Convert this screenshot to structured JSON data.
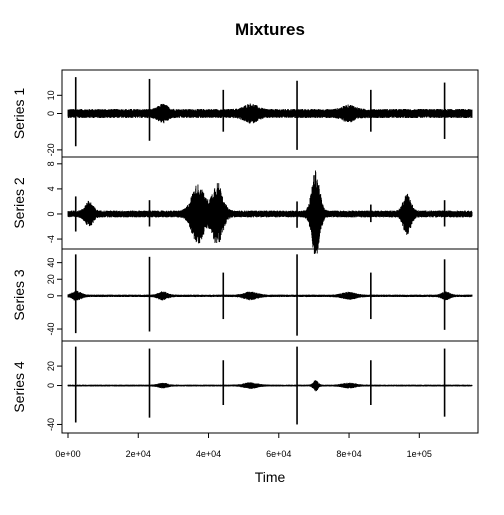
{
  "chart_data": {
    "type": "line",
    "title": "Mixtures",
    "xlabel": "Time",
    "xlim": [
      0,
      115000
    ],
    "x_ticks": [
      0,
      20000,
      40000,
      60000,
      80000,
      100000
    ],
    "x_tick_labels": [
      "0e+00",
      "2e+04",
      "4e+04",
      "6e+04",
      "8e+04",
      "1e+05"
    ],
    "grid": false,
    "spike_times": [
      2200,
      23200,
      44200,
      65200,
      86200,
      107200
    ],
    "series": [
      {
        "name": "Series 1",
        "ylim": [
          -22,
          22
        ],
        "y_ticks": [
          -20,
          0,
          10
        ],
        "y_tick_labels": [
          "-20",
          "0",
          "10"
        ],
        "baseline_amplitude": 2.5,
        "spike_up": [
          20,
          19,
          13,
          18,
          13,
          17
        ],
        "spike_down": [
          -18,
          -15,
          -10,
          -20,
          -10,
          -14
        ],
        "bursts": [
          {
            "center": 27000,
            "width": 1800,
            "amplitude": 3
          },
          {
            "center": 52000,
            "width": 2500,
            "amplitude": 3.2
          },
          {
            "center": 80000,
            "width": 2500,
            "amplitude": 2.5
          }
        ]
      },
      {
        "name": "Series 2",
        "ylim": [
          -5,
          8.5
        ],
        "y_ticks": [
          -4,
          0,
          4,
          8
        ],
        "y_tick_labels": [
          "-4",
          "0",
          "4",
          "8"
        ],
        "baseline_amplitude": 0.55,
        "spike_up": [
          2.8,
          2.2,
          1.6,
          2.0,
          1.5,
          2.2
        ],
        "spike_down": [
          -2.8,
          -2.0,
          -1.4,
          -2.2,
          -1.3,
          -2.0
        ],
        "bursts": [
          {
            "center": 37000,
            "width": 2400,
            "amplitude": 4.3
          },
          {
            "center": 42500,
            "width": 2000,
            "amplitude": 4.6
          },
          {
            "center": 70500,
            "width": 1500,
            "amplitude": 6.5
          },
          {
            "center": 96500,
            "width": 1500,
            "amplitude": 2.8
          },
          {
            "center": 6000,
            "width": 1500,
            "amplitude": 1.6
          }
        ]
      },
      {
        "name": "Series 3",
        "ylim": [
          -50,
          52
        ],
        "y_ticks": [
          -40,
          0,
          20,
          40
        ],
        "y_tick_labels": [
          "-40",
          "0",
          "20",
          "40"
        ],
        "baseline_amplitude": 1.5,
        "spike_up": [
          50,
          47,
          28,
          50,
          28,
          44
        ],
        "spike_down": [
          -45,
          -43,
          -28,
          -48,
          -28,
          -41
        ],
        "bursts": [
          {
            "center": 2500,
            "width": 1600,
            "amplitude": 5
          },
          {
            "center": 27000,
            "width": 1800,
            "amplitude": 4
          },
          {
            "center": 52000,
            "width": 2500,
            "amplitude": 4
          },
          {
            "center": 80000,
            "width": 2500,
            "amplitude": 3.5
          },
          {
            "center": 107500,
            "width": 1500,
            "amplitude": 4
          }
        ]
      },
      {
        "name": "Series 4",
        "ylim": [
          -45,
          42
        ],
        "y_ticks": [
          -40,
          0,
          20
        ],
        "y_tick_labels": [
          "-40",
          "0",
          "20"
        ],
        "baseline_amplitude": 1.0,
        "spike_up": [
          40,
          38,
          26,
          40,
          26,
          38
        ],
        "spike_down": [
          -38,
          -33,
          -20,
          -40,
          -20,
          -32
        ],
        "bursts": [
          {
            "center": 27000,
            "width": 1800,
            "amplitude": 2
          },
          {
            "center": 52000,
            "width": 2500,
            "amplitude": 2.5
          },
          {
            "center": 70500,
            "width": 900,
            "amplitude": 5
          },
          {
            "center": 80000,
            "width": 2500,
            "amplitude": 2
          }
        ]
      }
    ]
  }
}
